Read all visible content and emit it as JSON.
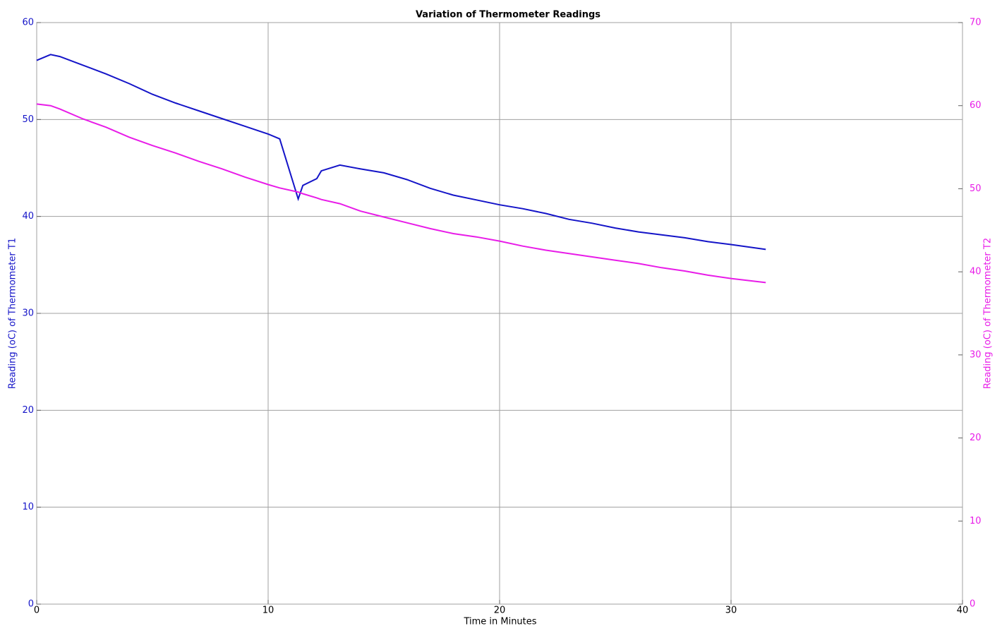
{
  "chart_data": {
    "type": "line",
    "title": "Variation of Thermometer Readings",
    "x_label": "Time in Minutes",
    "y_label": "Reading (oC) of Thermometer T1",
    "y2_label": "Reading (oC) of Thermometer T2",
    "x": [
      0,
      0.6,
      1,
      2,
      3,
      4,
      5,
      6,
      7,
      8,
      9,
      10,
      10.5,
      11.3,
      11.5,
      12.1,
      12.3,
      13.1,
      14,
      15,
      16,
      17,
      18,
      19,
      20,
      21,
      22,
      23,
      24,
      25,
      26,
      27,
      28,
      29,
      30,
      31.5
    ],
    "series": [
      {
        "name": "T1",
        "color": "#1414c8",
        "values": [
          56.1,
          56.7,
          56.5,
          55.6,
          54.7,
          53.7,
          52.6,
          51.7,
          50.9,
          50.1,
          49.3,
          48.5,
          48.0,
          41.8,
          43.2,
          43.9,
          44.7,
          45.3,
          44.9,
          44.5,
          43.8,
          42.9,
          42.2,
          41.7,
          41.2,
          40.8,
          40.3,
          39.7,
          39.3,
          38.8,
          38.4,
          38.1,
          37.8,
          37.4,
          37.1,
          36.6
        ]
      },
      {
        "name": "T2",
        "color": "#e81ce8",
        "axis": "y2",
        "values": [
          60.2,
          60.0,
          59.6,
          58.4,
          57.4,
          56.2,
          55.2,
          54.3,
          53.3,
          52.4,
          51.4,
          50.5,
          50.1,
          49.6,
          49.4,
          48.9,
          48.7,
          48.2,
          47.3,
          46.6,
          45.9,
          45.2,
          44.6,
          44.2,
          43.7,
          43.1,
          42.6,
          42.2,
          41.8,
          41.4,
          41.0,
          40.5,
          40.1,
          39.6,
          39.2,
          38.7
        ]
      }
    ],
    "xlim": [
      0,
      40
    ],
    "xticks": [
      0,
      10,
      20,
      30,
      40
    ],
    "ylim": [
      0,
      60
    ],
    "yticks": [
      0,
      10,
      20,
      30,
      40,
      50,
      60
    ],
    "y2lim": [
      0,
      70
    ],
    "y2ticks": [
      0,
      10,
      20,
      30,
      40,
      50,
      60,
      70
    ],
    "grid": true
  }
}
